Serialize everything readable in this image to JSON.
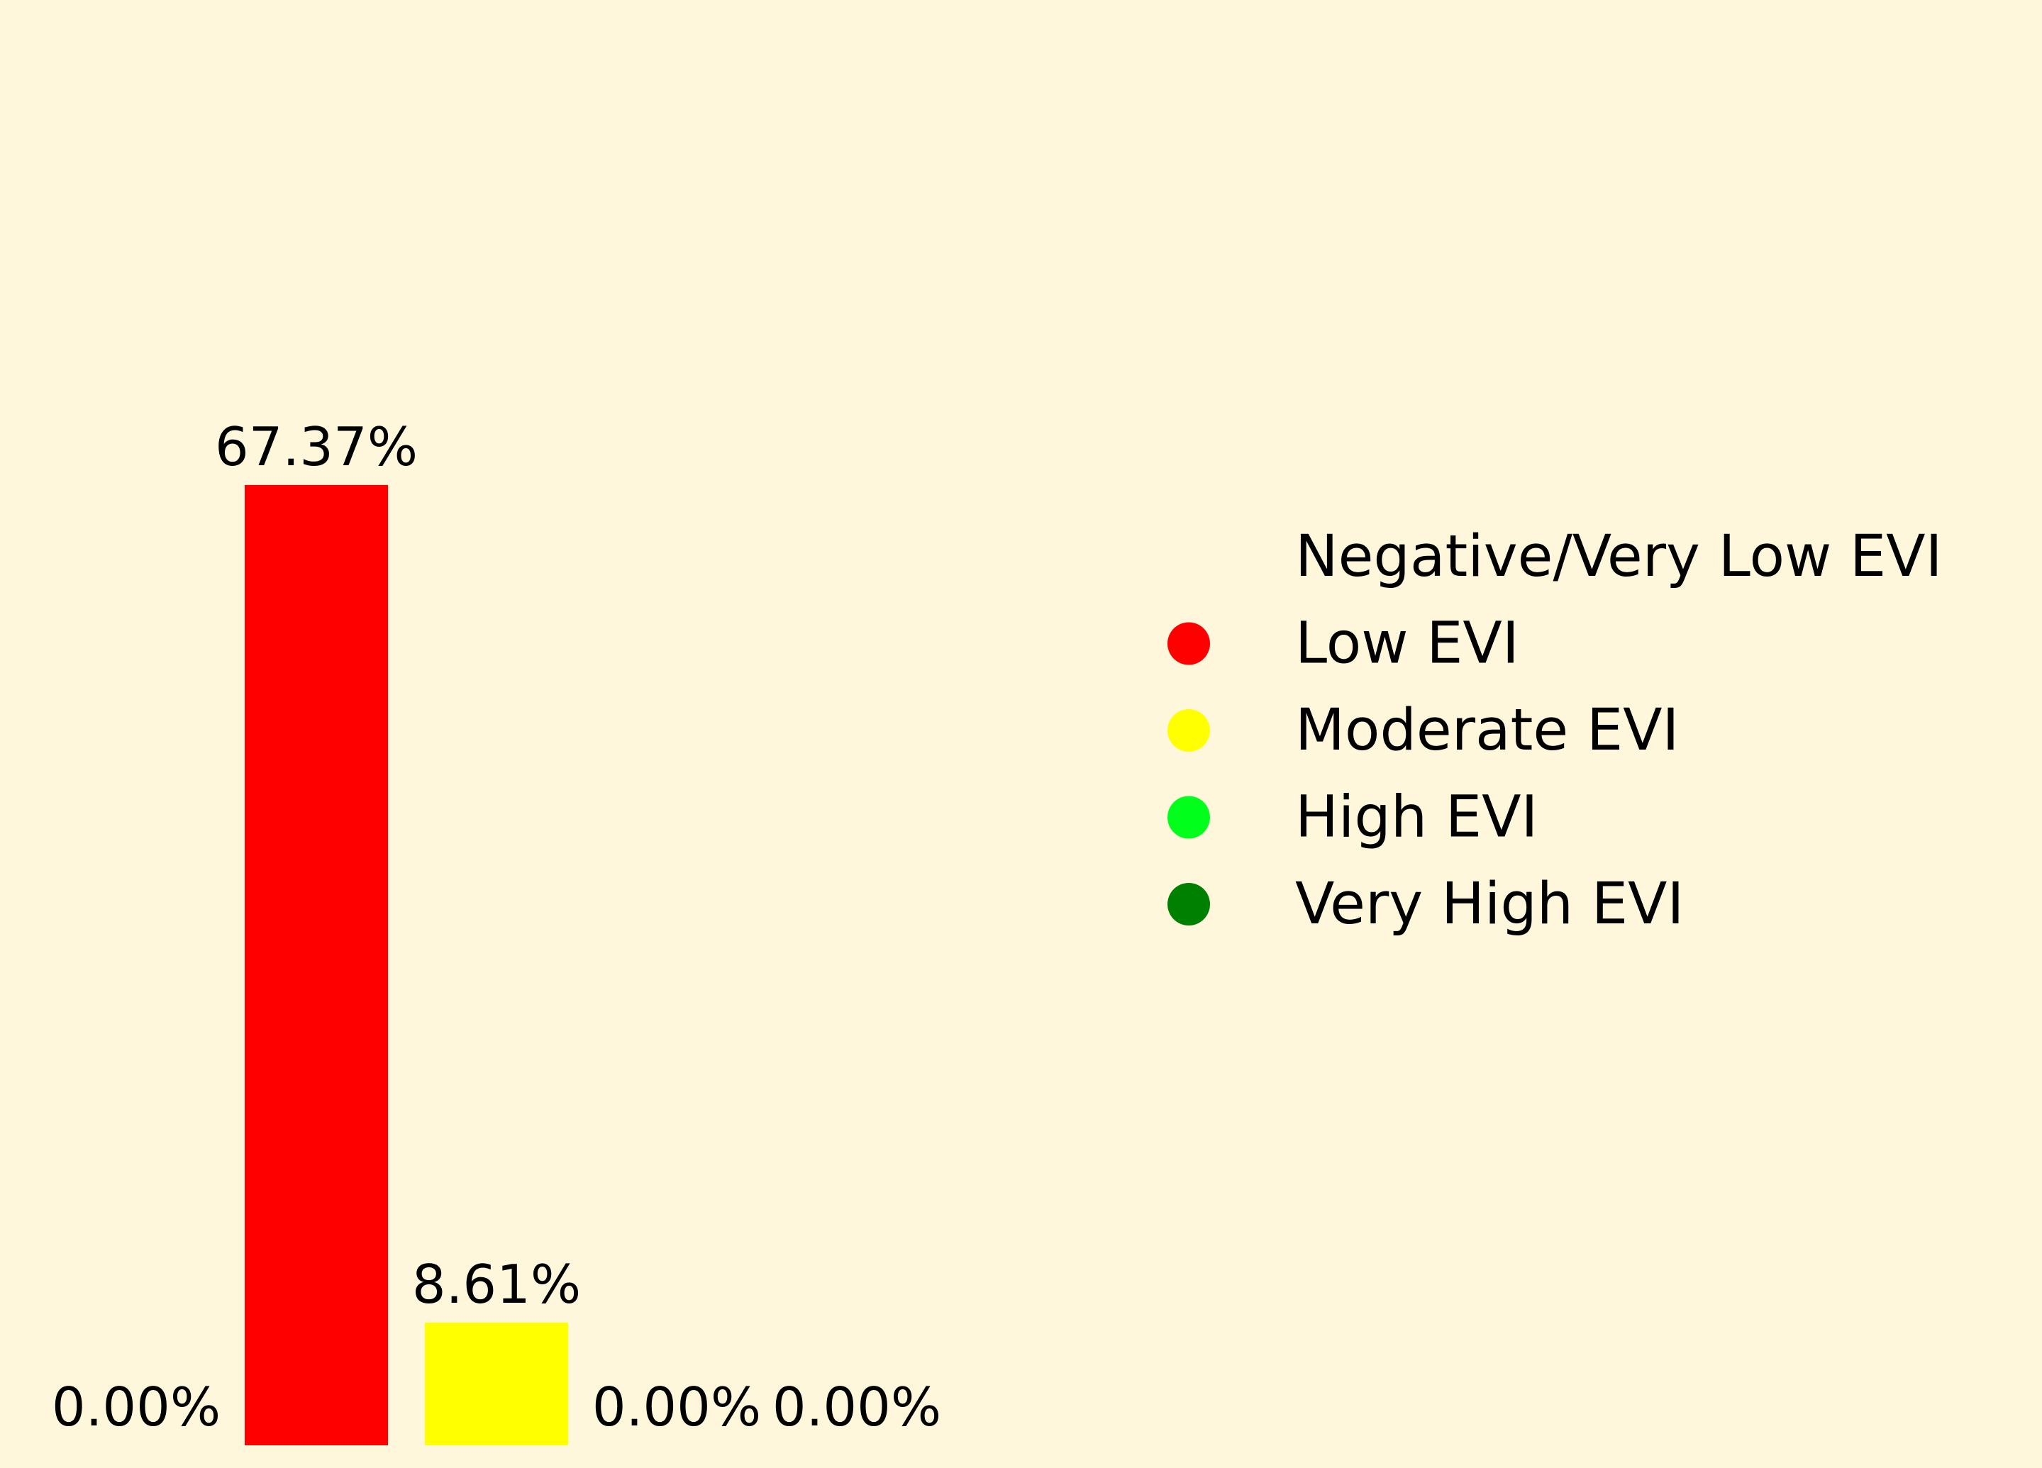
{
  "chart_data": {
    "type": "bar",
    "categories": [
      "Negative/Very Low EVI",
      "Low EVI",
      "Moderate EVI",
      "High EVI",
      "Very High EVI"
    ],
    "values": [
      0.0,
      67.37,
      8.61,
      0.0,
      0.0
    ],
    "value_labels": [
      "0.00%",
      "67.37%",
      "8.61%",
      "0.00%",
      "0.00%"
    ],
    "colors": [
      "#FFF7DC",
      "#FF0000",
      "#FFFF00",
      "#00FF1A",
      "#008000"
    ],
    "legend_placement": "right",
    "grid": false,
    "axes_visible": false,
    "ylim": [
      0,
      100
    ]
  },
  "colors": {
    "background": "#FFF7DC",
    "text": "#000000"
  }
}
